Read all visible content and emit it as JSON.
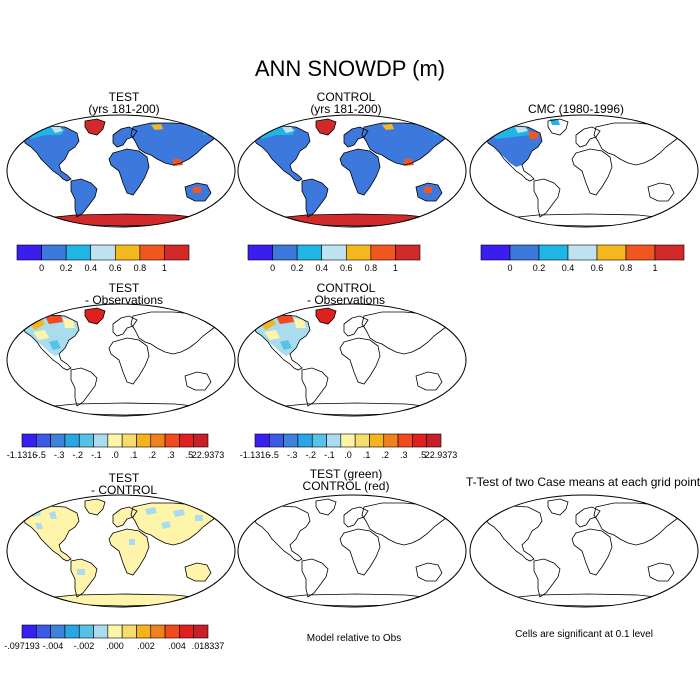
{
  "figure": {
    "title": "ANN SNOWDP (m)"
  },
  "panels": [
    {
      "id": "test",
      "title1": "TEST",
      "title2": "(yrs 181-200)"
    },
    {
      "id": "control",
      "title1": "CONTROL",
      "title2": "(yrs 181-200)"
    },
    {
      "id": "cmc",
      "title1": "CMC (1980-1996)",
      "title2": ""
    },
    {
      "id": "test-obs",
      "title1": "TEST",
      "title2": "- Observations"
    },
    {
      "id": "control-obs",
      "title1": "CONTROL",
      "title2": "- Observations"
    },
    {
      "id": "test-control",
      "title1": "TEST",
      "title2": "- CONTROL"
    },
    {
      "id": "green-red",
      "title1": "TEST (green)",
      "title2": "CONTROL (red)"
    },
    {
      "id": "ttest",
      "title1": "T-Test of two Case means at each grid point",
      "title2": ""
    }
  ],
  "colorbars": {
    "absolute": {
      "colors": [
        "#3a1ef0",
        "#3d78dc",
        "#1fb6e6",
        "#bfe3f0",
        "#f5b81e",
        "#f0561e",
        "#d22a2a"
      ],
      "labels": [
        "0",
        "0.2",
        "0.4",
        "0.6",
        "0.8",
        "1"
      ]
    },
    "obs_diff": {
      "colors": [
        "#3a1ef0",
        "#3d5ae6",
        "#3d82dc",
        "#2aa6e6",
        "#56c2e6",
        "#a8dcee",
        "#fff5aa",
        "#f5dc6e",
        "#f5b41e",
        "#f0821e",
        "#f04a1e",
        "#e0201e",
        "#c81e28"
      ],
      "labels": [
        "-1.1316",
        "-.5",
        "-.3",
        "-.2",
        "-.1",
        ".0",
        ".1",
        ".2",
        ".3",
        ".5",
        "22.9373"
      ]
    },
    "model_diff": {
      "colors": [
        "#3a1ef0",
        "#3d5ae6",
        "#3d82dc",
        "#2aa6e6",
        "#56c2e6",
        "#a8dcee",
        "#fff5aa",
        "#f5dc6e",
        "#f5b41e",
        "#f0821e",
        "#f04a1e",
        "#e0201e",
        "#c81e28"
      ],
      "labels": [
        "-.097193",
        "-.004",
        "-.002",
        ".000",
        ".002",
        ".004",
        ".018337"
      ]
    }
  },
  "notes": {
    "model_relative": "Model relative to Obs",
    "significance": "Cells are significant at 0.1 level"
  }
}
